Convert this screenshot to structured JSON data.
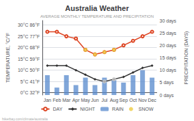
{
  "chart_data": {
    "type": "line",
    "title": "Australia Weather",
    "subtitle": "AVERAGE MONTHLY TEMPERATURE AND PRECIPITATION",
    "annotations": [
      "hikerbay.com/climate/australia"
    ],
    "ylabel": "TEMPERATURE, °C/°F",
    "y2label": "PRECIPITATION (DAYS)",
    "categories": [
      "Jan",
      "Feb",
      "Mar",
      "Apr",
      "May",
      "Jun",
      "Jul",
      "Aug",
      "Sep",
      "Oct",
      "Nov",
      "Dec"
    ],
    "series": [
      {
        "name": "DAY",
        "type": "line",
        "color": "#dd4422",
        "marker": "circle",
        "values": [
          27,
          27,
          25,
          24,
          19,
          17,
          18,
          19,
          21,
          23,
          25,
          27
        ]
      },
      {
        "name": "NIGHT",
        "type": "line",
        "color": "#333333",
        "marker": "diamond",
        "values": [
          12,
          12,
          12,
          10,
          8,
          6,
          5,
          6,
          7,
          9,
          11,
          12
        ]
      },
      {
        "name": "RAIN",
        "type": "bar",
        "color": "#5588cc",
        "axis": "y2",
        "values": [
          8,
          3,
          8,
          4,
          7,
          4,
          7,
          6,
          5,
          8,
          10,
          7
        ]
      },
      {
        "name": "SNOW",
        "type": "scatter",
        "color": "#eecc44",
        "marker": "circle",
        "values": [
          null,
          null,
          null,
          null,
          19,
          17,
          18,
          19,
          null,
          null,
          null,
          null
        ]
      },
      {
        "name": "SNOW",
        "type": "scatter",
        "color": "#cccccc",
        "marker": "circle",
        "values": [
          null,
          null,
          null,
          null,
          null,
          null,
          5,
          6,
          null,
          null,
          null,
          null
        ]
      }
    ],
    "ylim": [
      -1,
      32
    ],
    "yticks": [
      {
        "value": 0,
        "label": "0°C 32°F"
      },
      {
        "value": 5,
        "label": "5°C 41°F"
      },
      {
        "value": 10,
        "label": "10°C 50°F"
      },
      {
        "value": 15,
        "label": "15°C 59°F"
      },
      {
        "value": 20,
        "label": "20°C 68°F"
      },
      {
        "value": 25,
        "label": "25°C 77°F"
      },
      {
        "value": 30,
        "label": "30°C 86°F"
      }
    ],
    "y2lim": [
      0,
      30
    ],
    "y2ticks": [
      {
        "value": 0,
        "label": "0 days"
      },
      {
        "value": 5,
        "label": "5 days"
      },
      {
        "value": 10,
        "label": "10 days"
      },
      {
        "value": 15,
        "label": "15 days"
      },
      {
        "value": 20,
        "label": "20 days"
      },
      {
        "value": 25,
        "label": "25 days"
      },
      {
        "value": 30,
        "label": "30 days"
      }
    ],
    "grid": true,
    "legend": "bottom"
  }
}
